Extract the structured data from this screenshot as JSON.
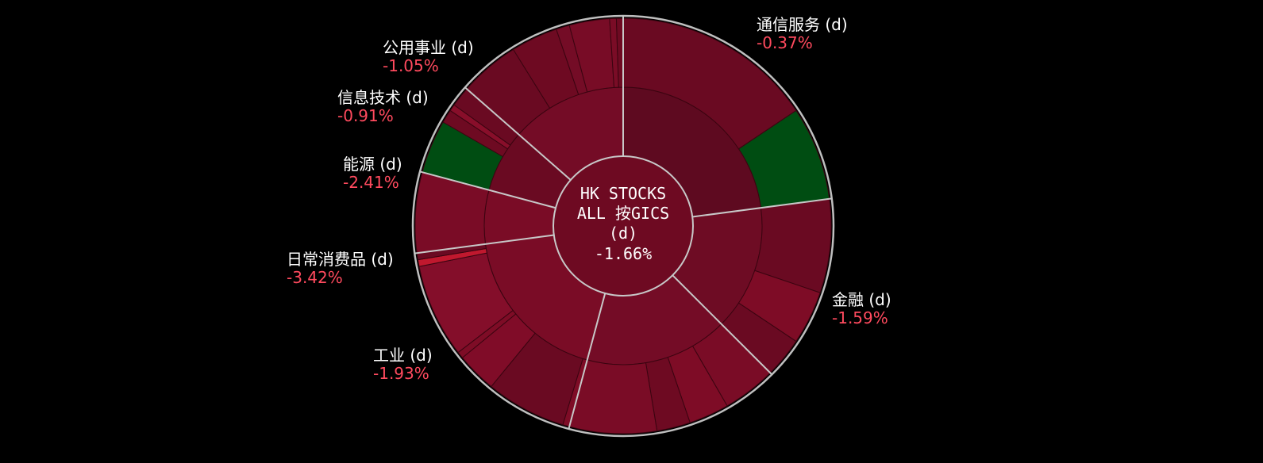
{
  "chart_data": {
    "type": "sunburst",
    "center": {
      "line1": "HK STOCKS",
      "line2": "ALL 按GICS",
      "line3": "(d)",
      "value": "-1.66%"
    },
    "sectors": [
      {
        "name": "通信服务 (d)",
        "pct": "-0.37%",
        "value": -0.37,
        "weight": 22,
        "color": "#5e0a20",
        "children": [
          {
            "w": 15,
            "color": "#6a0a22"
          },
          {
            "w": 7,
            "color": "#004d12"
          }
        ]
      },
      {
        "name": "金融 (d)",
        "pct": "-1.59%",
        "value": -1.59,
        "weight": 14,
        "color": "#6e0c24",
        "children": [
          {
            "w": 7,
            "color": "#6a0a22"
          },
          {
            "w": 4,
            "color": "#7e0c26"
          },
          {
            "w": 3,
            "color": "#6a0a22"
          }
        ]
      },
      {
        "name": "工业 (d)",
        "pct": "-1.93%",
        "value": -1.93,
        "weight": 16,
        "color": "#740c26",
        "children": [
          {
            "w": 4,
            "color": "#7a0c26"
          },
          {
            "w": 3,
            "color": "#7e0c26"
          },
          {
            "w": 2.5,
            "color": "#6e0a22"
          },
          {
            "w": 6.5,
            "color": "#7a0c26"
          }
        ]
      },
      {
        "name": "日常消费品 (d)",
        "pct": "-3.42%",
        "value": -3.42,
        "weight": 18,
        "color": "#7a0c26",
        "children": [
          {
            "w": 0.5,
            "color": "#7e0c26"
          },
          {
            "w": 6,
            "color": "#6a0a22"
          },
          {
            "w": 3,
            "color": "#800c28"
          },
          {
            "w": 0.5,
            "color": "#7e0c26"
          },
          {
            "w": 7,
            "color": "#840e2a"
          },
          {
            "w": 0.5,
            "color": "#c0182e"
          },
          {
            "w": 0.5,
            "color": "#6a0a22"
          }
        ]
      },
      {
        "name": "能源 (d)",
        "pct": "-2.41%",
        "value": -2.41,
        "weight": 6,
        "color": "#7a0c26",
        "children": [
          {
            "w": 6,
            "color": "#7a0c26"
          }
        ]
      },
      {
        "name": "信息技术 (d)",
        "pct": "-0.91%",
        "value": -0.91,
        "weight": 7,
        "color": "#6a0a22",
        "children": [
          {
            "w": 4,
            "color": "#004d12"
          },
          {
            "w": 1,
            "color": "#6e0a22"
          },
          {
            "w": 0.5,
            "color": "#880e2a"
          },
          {
            "w": 1.5,
            "color": "#6a0a22"
          }
        ]
      },
      {
        "name": "公用事业 (d)",
        "pct": "-1.05%",
        "value": -1.05,
        "weight": 13,
        "color": "#740c26",
        "children": [
          {
            "w": 4.5,
            "color": "#6a0a22"
          },
          {
            "w": 3.5,
            "color": "#6e0a22"
          },
          {
            "w": 1,
            "color": "#740c26"
          },
          {
            "w": 3,
            "color": "#780c26"
          },
          {
            "w": 0.5,
            "color": "#7a0c26"
          },
          {
            "w": 0.5,
            "color": "#6e0a22"
          }
        ]
      }
    ]
  }
}
